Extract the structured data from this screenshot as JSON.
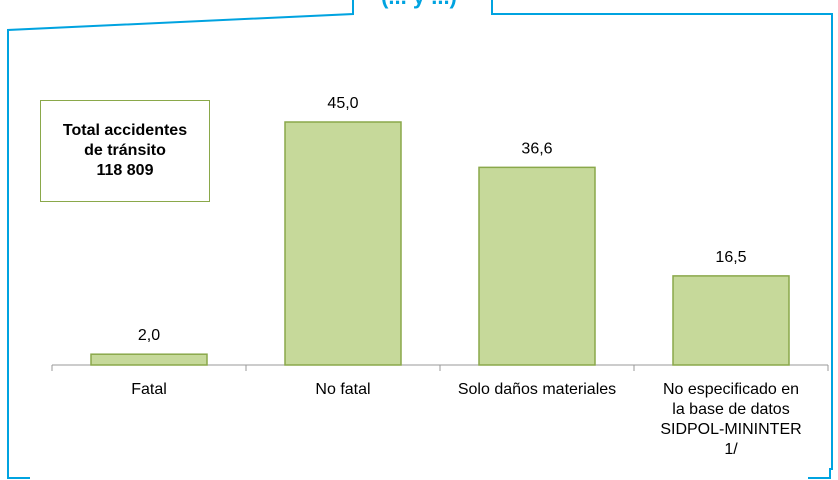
{
  "header": {
    "title_fragment": "(... y ...)"
  },
  "summary_box": {
    "line1": "Total accidentes",
    "line2": "de tránsito",
    "line3": "118 809"
  },
  "colors": {
    "frame": "#00a3e0",
    "bar_fill": "#c6d99a",
    "bar_stroke": "#8aa84a",
    "axis": "#999999"
  },
  "chart_data": {
    "type": "bar",
    "categories": [
      "Fatal",
      "No fatal",
      "Solo daños materiales",
      "No especificado en la base de datos SIDPOL-MININTER 1/"
    ],
    "values": [
      2.0,
      45.0,
      36.6,
      16.5
    ],
    "data_labels": [
      "2,0",
      "45,0",
      "36,6",
      "16,5"
    ],
    "ylim": [
      0,
      50
    ],
    "grid": false,
    "title": "",
    "xlabel": "",
    "ylabel": ""
  }
}
